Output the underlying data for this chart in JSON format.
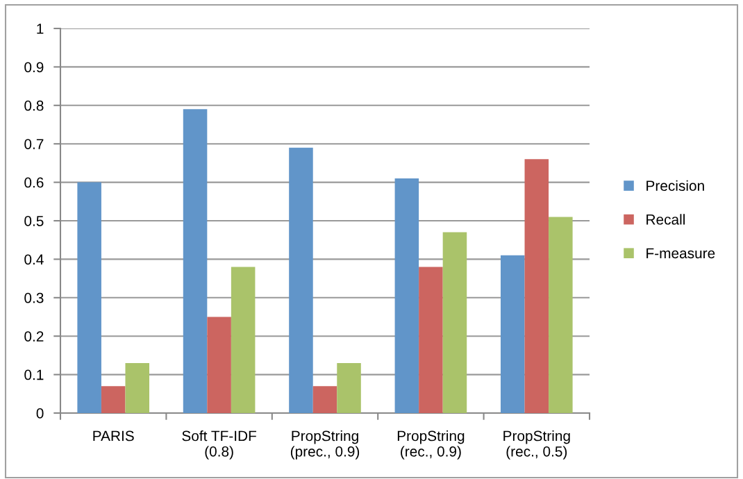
{
  "chart_data": {
    "type": "bar",
    "categories": [
      "PARIS",
      "Soft TF-IDF\n(0.8)",
      "PropString\n(prec., 0.9)",
      "PropString\n(rec., 0.9)",
      "PropString\n(rec., 0.5)"
    ],
    "series": [
      {
        "name": "Precision",
        "color": "#6195c9",
        "values": [
          0.6,
          0.79,
          0.69,
          0.61,
          0.41
        ]
      },
      {
        "name": "Recall",
        "color": "#cc6560",
        "values": [
          0.07,
          0.25,
          0.07,
          0.38,
          0.66
        ]
      },
      {
        "name": "F-measure",
        "color": "#aac36a",
        "values": [
          0.13,
          0.38,
          0.13,
          0.47,
          0.51
        ]
      }
    ],
    "ylim": [
      0,
      1
    ],
    "yticks": [
      0,
      0.1,
      0.2,
      0.3,
      0.4,
      0.5,
      0.6,
      0.7,
      0.8,
      0.9,
      1
    ],
    "grid": "y",
    "legend": "right"
  }
}
